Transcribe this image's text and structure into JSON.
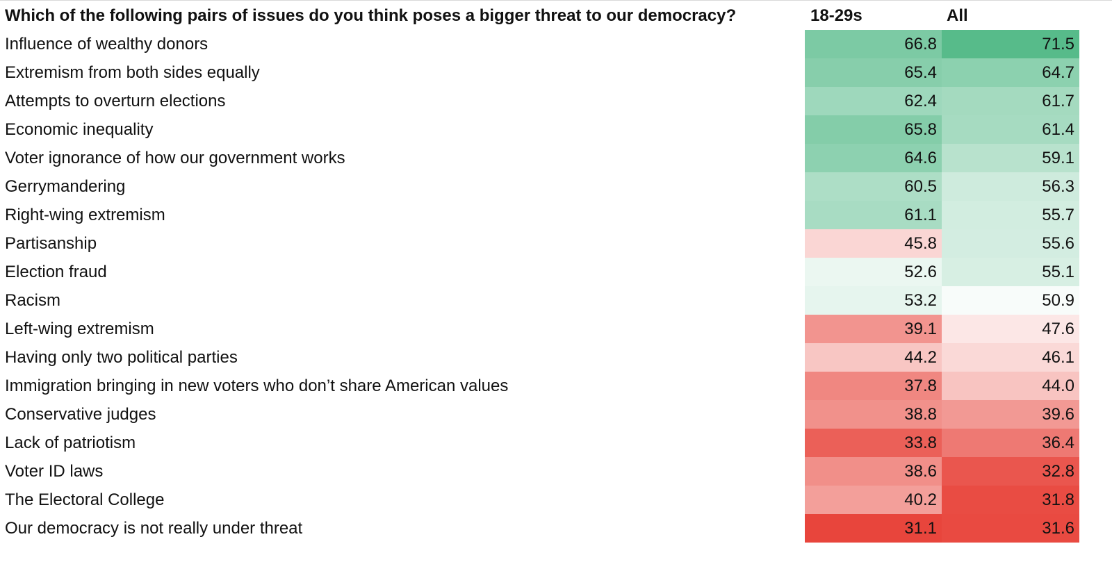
{
  "chart_data": {
    "type": "table",
    "title": "Which of the following pairs of issues do you think poses a bigger threat to our democracy?",
    "columns": [
      "18-29s",
      "All"
    ],
    "color_scale": {
      "low": "#e8453c",
      "mid": "#ffffff",
      "high": "#57bb8a",
      "mid_value": 50
    },
    "rows": [
      {
        "label": "Influence of wealthy donors",
        "values": [
          "66.8",
          "71.5"
        ]
      },
      {
        "label": "Extremism from both sides equally",
        "values": [
          "65.4",
          "64.7"
        ]
      },
      {
        "label": "Attempts to overturn elections",
        "values": [
          "62.4",
          "61.7"
        ]
      },
      {
        "label": "Economic inequality",
        "values": [
          "65.8",
          "61.4"
        ]
      },
      {
        "label": "Voter ignorance of how our government works",
        "values": [
          "64.6",
          "59.1"
        ]
      },
      {
        "label": "Gerrymandering",
        "values": [
          "60.5",
          "56.3"
        ]
      },
      {
        "label": "Right-wing extremism",
        "values": [
          "61.1",
          "55.7"
        ]
      },
      {
        "label": "Partisanship",
        "values": [
          "45.8",
          "55.6"
        ]
      },
      {
        "label": "Election fraud",
        "values": [
          "52.6",
          "55.1"
        ]
      },
      {
        "label": "Racism",
        "values": [
          "53.2",
          "50.9"
        ]
      },
      {
        "label": "Left-wing extremism",
        "values": [
          "39.1",
          "47.6"
        ]
      },
      {
        "label": "Having only two political parties",
        "values": [
          "44.2",
          "46.1"
        ]
      },
      {
        "label": "Immigration bringing in new voters who don’t share American values",
        "values": [
          "37.8",
          "44.0"
        ]
      },
      {
        "label": "Conservative judges",
        "values": [
          "38.8",
          "39.6"
        ]
      },
      {
        "label": "Lack of patriotism",
        "values": [
          "33.8",
          "36.4"
        ]
      },
      {
        "label": "Voter ID laws",
        "values": [
          "38.6",
          "32.8"
        ]
      },
      {
        "label": "The Electoral College",
        "values": [
          "40.2",
          "31.8"
        ]
      },
      {
        "label": "Our democracy is not really under threat",
        "values": [
          "31.1",
          "31.6"
        ]
      }
    ]
  }
}
